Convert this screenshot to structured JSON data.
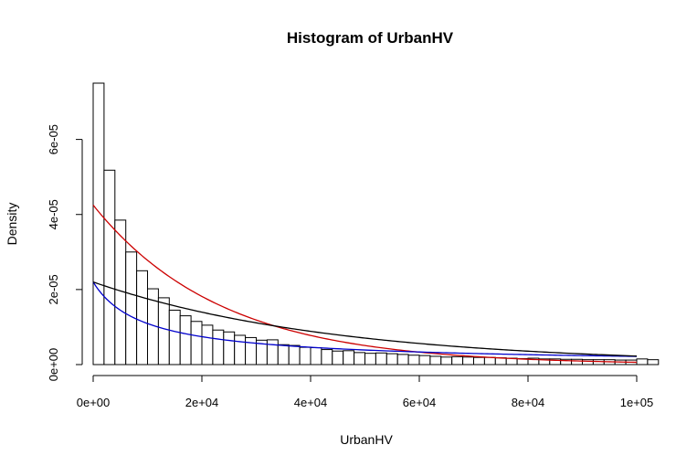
{
  "chart_data": {
    "type": "bar",
    "title": "Histogram of UrbanHV",
    "xlabel": "UrbanHV",
    "ylabel": "Density",
    "xlim": [
      0,
      104000
    ],
    "ylim": [
      0,
      7.5e-05
    ],
    "x_ticks": [
      0,
      20000,
      40000,
      60000,
      80000,
      100000
    ],
    "x_tick_labels": [
      "0e+00",
      "2e+04",
      "4e+04",
      "6e+04",
      "8e+04",
      "1e+05"
    ],
    "y_ticks": [
      0,
      2e-05,
      4e-05,
      6e-05
    ],
    "y_tick_labels": [
      "0e+00",
      "2e-05",
      "4e-05",
      "6e-05"
    ],
    "bin_width": 2000,
    "bin_start": 0,
    "values": [
      7.5e-05,
      5.18e-05,
      3.85e-05,
      3e-05,
      2.5e-05,
      2.02e-05,
      1.78e-05,
      1.45e-05,
      1.3e-05,
      1.15e-05,
      1.05e-05,
      9.2e-06,
      8.7e-06,
      7.8e-06,
      7.2e-06,
      6.5e-06,
      6.6e-06,
      5.3e-06,
      5.1e-06,
      4.6e-06,
      4.5e-06,
      4e-06,
      3.6e-06,
      3.7e-06,
      3.2e-06,
      3e-06,
      3.1e-06,
      2.9e-06,
      2.7e-06,
      2.5e-06,
      2.4e-06,
      2.2e-06,
      2e-06,
      2.1e-06,
      2e-06,
      1.9e-06,
      1.9e-06,
      1.8e-06,
      1.7e-06,
      1.6e-06,
      1.7e-06,
      1.5e-06,
      1.5e-06,
      1.4e-06,
      1.4e-06,
      1.3e-06,
      1.3e-06,
      1.3e-06,
      1.2e-06,
      1.2e-06,
      1.5e-06,
      1.3e-06
    ],
    "curves": [
      {
        "color": "#cc0000",
        "rate": 4.25e-05,
        "x_range": [
          0,
          100000
        ]
      },
      {
        "color": "#0000cc",
        "rate": 2.2e-05,
        "x_range": [
          0,
          100000
        ]
      },
      {
        "color": "#000000",
        "shape": 1.0,
        "x_range": [
          0,
          100000
        ],
        "values": [
          2.2e-05,
          1.6e-05,
          1.12e-05,
          7.8e-06,
          5.4e-06,
          3.8e-06
        ]
      }
    ],
    "grid": false,
    "legend": "none"
  }
}
